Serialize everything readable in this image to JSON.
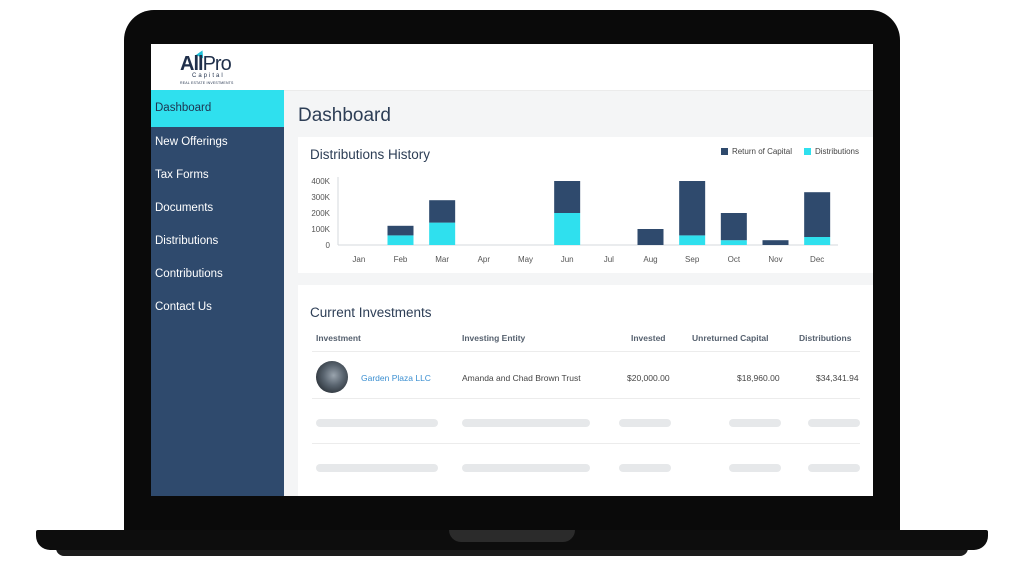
{
  "logo": {
    "main_a": "All",
    "main_b": "Pro",
    "sub": "Capital",
    "tag": "REAL ESTATE INVESTMENTS"
  },
  "sidebar": {
    "items": [
      {
        "label": "Dashboard",
        "active": true
      },
      {
        "label": "New Offerings"
      },
      {
        "label": "Tax Forms"
      },
      {
        "label": "Documents"
      },
      {
        "label": "Distributions"
      },
      {
        "label": "Contributions"
      },
      {
        "label": "Contact Us"
      }
    ]
  },
  "page": {
    "title": "Dashboard"
  },
  "chart_data": {
    "type": "bar",
    "title": "Distributions History",
    "categories": [
      "Jan",
      "Feb",
      "Mar",
      "Apr",
      "May",
      "Jun",
      "Jul",
      "Aug",
      "Sep",
      "Oct",
      "Nov",
      "Dec"
    ],
    "series": [
      {
        "name": "Return of Capital",
        "color": "#2f4a6d",
        "values": [
          0,
          60,
          140,
          0,
          0,
          200,
          0,
          100,
          340,
          170,
          30,
          280
        ]
      },
      {
        "name": "Distributions",
        "color": "#2fe0ee",
        "values": [
          0,
          60,
          140,
          0,
          0,
          200,
          0,
          0,
          60,
          30,
          0,
          50
        ]
      }
    ],
    "stacked": true,
    "yticks": [
      "400K",
      "300K",
      "200K",
      "100K",
      "0"
    ],
    "ylim": [
      0,
      400
    ],
    "legend": "top-right",
    "grid": false
  },
  "investments": {
    "title": "Current Investments",
    "columns": [
      "Investment",
      "Investing Entity",
      "Invested",
      "Unreturned Capital",
      "Distributions"
    ],
    "rows": [
      {
        "investment": "Garden Plaza LLC",
        "entity": "Amanda and Chad Brown Trust",
        "invested": "$20,000.00",
        "unreturned": "$18,960.00",
        "distributions": "$34,341.94"
      }
    ]
  }
}
